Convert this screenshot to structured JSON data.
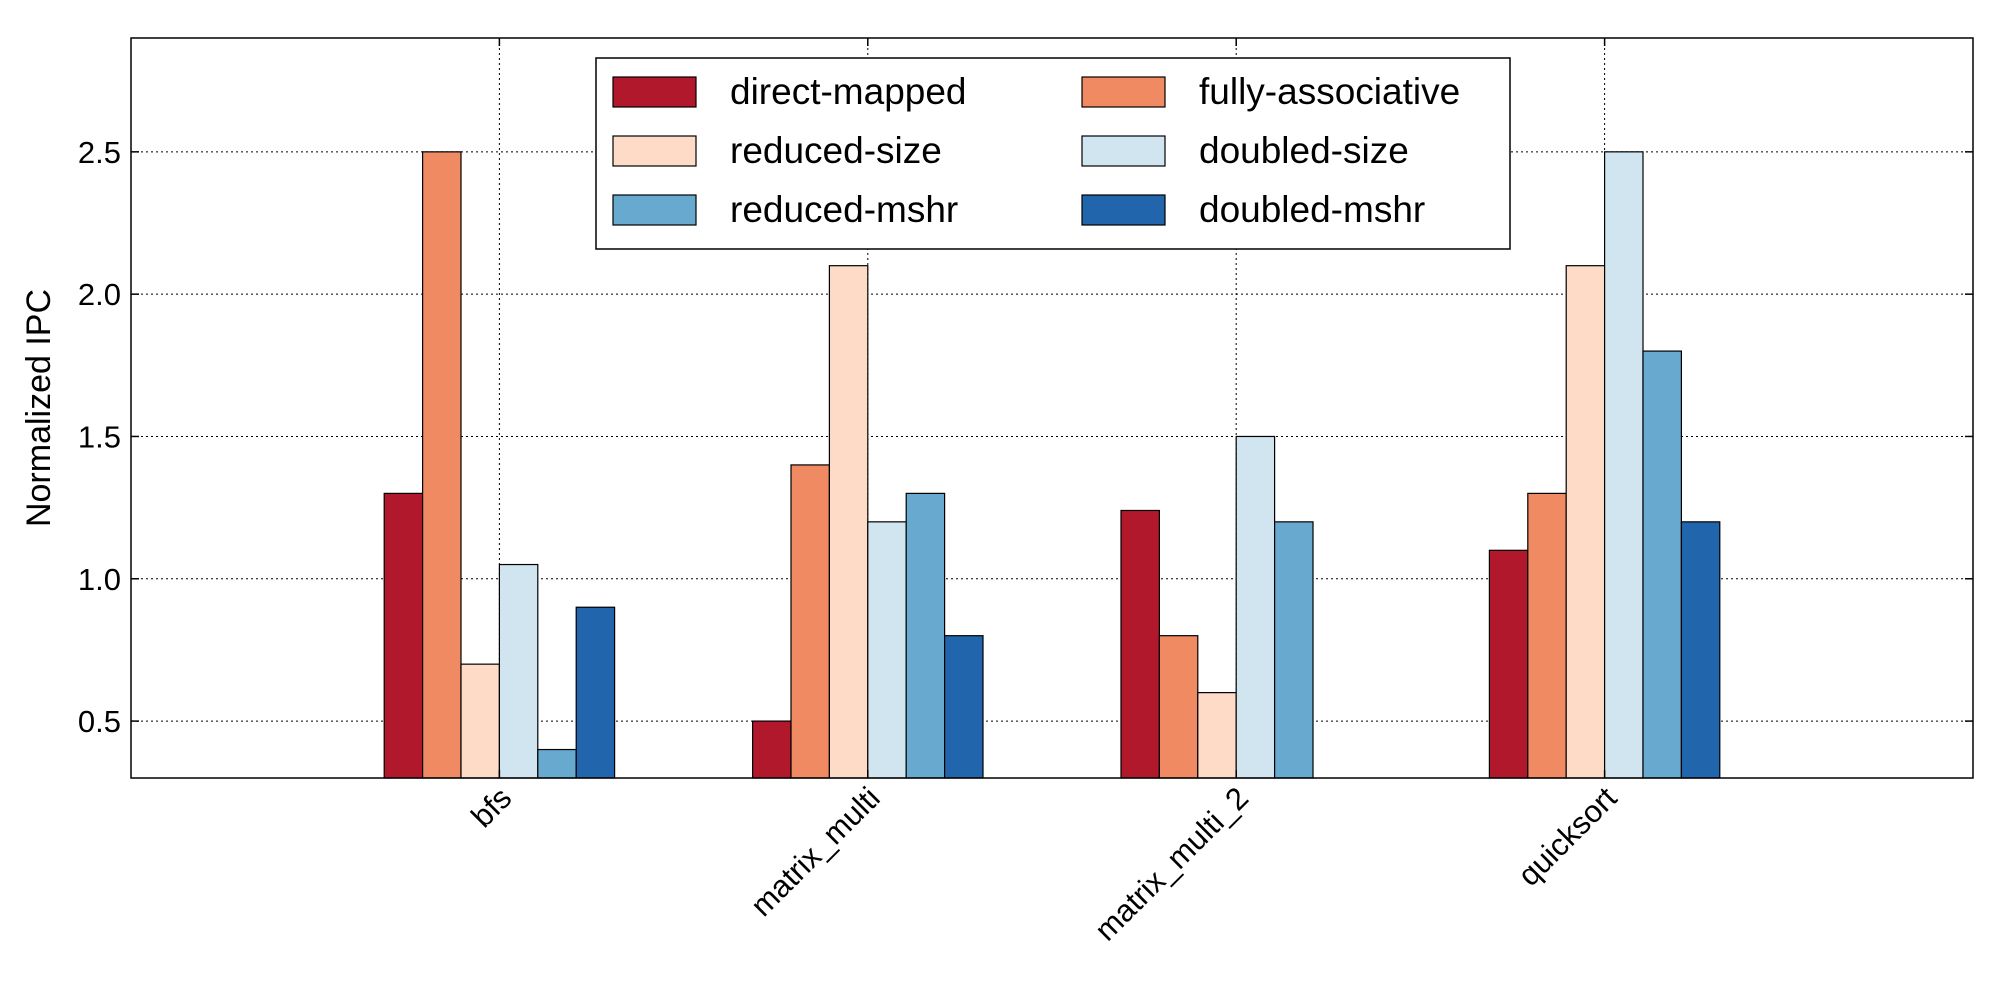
{
  "chart_data": {
    "type": "bar",
    "title": "",
    "xlabel": "",
    "ylabel": "Normalized IPC",
    "ylim": [
      0.3,
      2.9
    ],
    "yticks": [
      "0.5",
      "1.0",
      "1.5",
      "2.0",
      "2.5"
    ],
    "grid": true,
    "legend_position": "top-center",
    "categories": [
      "bfs",
      "matrix_multi",
      "matrix_multi_2",
      "quicksort"
    ],
    "series": [
      {
        "name": "direct-mapped",
        "color": "#b2182b",
        "values": [
          1.3,
          0.5,
          1.24,
          1.1
        ]
      },
      {
        "name": "fully-associative",
        "color": "#ef8a62",
        "values": [
          2.5,
          1.4,
          0.8,
          1.3
        ]
      },
      {
        "name": "reduced-size",
        "color": "#fddbc7",
        "values": [
          0.7,
          2.1,
          0.6,
          2.1
        ]
      },
      {
        "name": "doubled-size",
        "color": "#d1e5f0",
        "values": [
          1.05,
          1.2,
          1.5,
          2.5
        ]
      },
      {
        "name": "reduced-mshr",
        "color": "#67a9cf",
        "values": [
          0.4,
          1.3,
          1.2,
          1.8
        ]
      },
      {
        "name": "doubled-mshr",
        "color": "#2166ac",
        "values": [
          0.9,
          0.8,
          null,
          1.2
        ]
      }
    ],
    "legend_order": [
      "direct-mapped",
      "fully-associative",
      "reduced-size",
      "doubled-size",
      "reduced-mshr",
      "doubled-mshr"
    ]
  }
}
